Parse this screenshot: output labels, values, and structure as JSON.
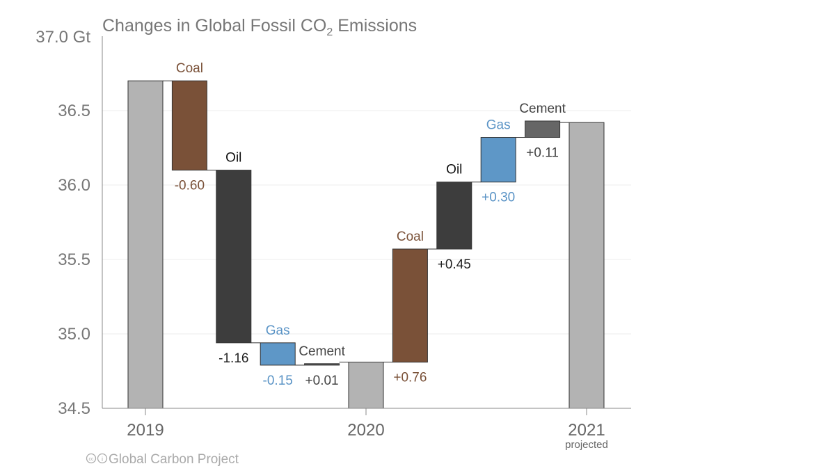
{
  "chart_data": {
    "type": "waterfall",
    "title_parts": [
      "Changes in Global Fossil CO",
      "2",
      " Emissions"
    ],
    "y_unit_label": "37.0 Gt",
    "ylim": [
      34.5,
      37.0
    ],
    "yticks": [
      "34.5",
      "35.0",
      "35.5",
      "36.0",
      "36.5"
    ],
    "grid": true,
    "x_tick_labels": [
      "2019",
      "2020",
      "2021"
    ],
    "x_tick_sublabel": "projected",
    "steps": [
      {
        "kind": "total",
        "name": "2019",
        "value": 36.7
      },
      {
        "kind": "delta",
        "name": "Coal",
        "delta": -0.6,
        "label": "-0.60",
        "color": "#7a5138",
        "text_color": "#7a5138"
      },
      {
        "kind": "delta",
        "name": "Oil",
        "delta": -1.16,
        "label": "-1.16",
        "color": "#3d3d3d",
        "text_color": "#222222"
      },
      {
        "kind": "delta",
        "name": "Gas",
        "delta": -0.15,
        "label": "-0.15",
        "color": "#5e97c7",
        "text_color": "#5b94c6"
      },
      {
        "kind": "delta",
        "name": "Cement",
        "delta": 0.01,
        "label": "+0.01",
        "color": "#555555",
        "text_color": "#444444"
      },
      {
        "kind": "total",
        "name": "2020",
        "value": 34.81
      },
      {
        "kind": "delta",
        "name": "Coal",
        "delta": 0.76,
        "label": "+0.76",
        "color": "#7a5138",
        "text_color": "#7a5138"
      },
      {
        "kind": "delta",
        "name": "Oil",
        "delta": 0.45,
        "label": "+0.45",
        "color": "#3d3d3d",
        "text_color": "#222222"
      },
      {
        "kind": "delta",
        "name": "Gas",
        "delta": 0.3,
        "label": "+0.30",
        "color": "#5e97c7",
        "text_color": "#5b94c6"
      },
      {
        "kind": "delta",
        "name": "Cement",
        "delta": 0.11,
        "label": "+0.11",
        "color": "#666666",
        "text_color": "#444444"
      },
      {
        "kind": "total",
        "name": "2021",
        "value": 36.42
      }
    ],
    "total_color": "#b3b3b3"
  },
  "footer": {
    "credit": "Global Carbon Project",
    "license_icons": "cc-by-icon"
  }
}
